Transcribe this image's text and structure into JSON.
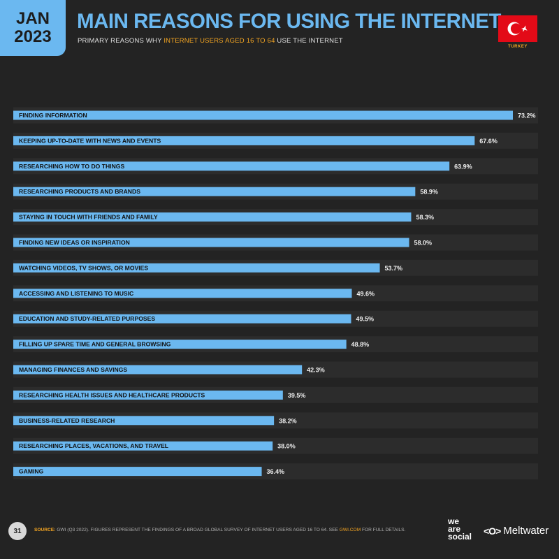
{
  "header": {
    "month": "JAN",
    "year": "2023",
    "title": "MAIN REASONS FOR USING THE INTERNET",
    "subtitle_pre": "PRIMARY REASONS WHY ",
    "subtitle_highlight": "INTERNET USERS AGED 16 TO 64",
    "subtitle_post": " USE THE INTERNET",
    "country": "TURKEY"
  },
  "chart_data": {
    "type": "bar",
    "orientation": "horizontal",
    "categories": [
      "FINDING INFORMATION",
      "KEEPING UP-TO-DATE WITH NEWS AND EVENTS",
      "RESEARCHING HOW TO DO THINGS",
      "RESEARCHING PRODUCTS AND BRANDS",
      "STAYING IN TOUCH WITH FRIENDS AND FAMILY",
      "FINDING NEW IDEAS OR INSPIRATION",
      "WATCHING VIDEOS, TV SHOWS, OR MOVIES",
      "ACCESSING AND LISTENING TO MUSIC",
      "EDUCATION AND STUDY-RELATED PURPOSES",
      "FILLING UP SPARE TIME AND GENERAL BROWSING",
      "MANAGING FINANCES AND SAVINGS",
      "RESEARCHING HEALTH ISSUES AND HEALTHCARE PRODUCTS",
      "BUSINESS-RELATED RESEARCH",
      "RESEARCHING PLACES, VACATIONS, AND TRAVEL",
      "GAMING"
    ],
    "values": [
      73.2,
      67.6,
      63.9,
      58.9,
      58.3,
      58.0,
      53.7,
      49.6,
      49.5,
      48.8,
      42.3,
      39.5,
      38.2,
      38.0,
      36.4
    ],
    "value_labels": [
      "73.2%",
      "67.6%",
      "63.9%",
      "58.9%",
      "58.3%",
      "58.0%",
      "53.7%",
      "49.6%",
      "49.5%",
      "48.8%",
      "42.3%",
      "39.5%",
      "38.2%",
      "38.0%",
      "36.4%"
    ],
    "bar_color": "#6bb8f0",
    "xlim": [
      0,
      73.2
    ]
  },
  "footer": {
    "page_number": "31",
    "source_key": "SOURCE:",
    "source_text": " GWI (Q3 2022). FIGURES REPRESENT THE FINDINGS OF A BROAD GLOBAL SURVEY OF INTERNET USERS AGED 16 TO 64. SEE ",
    "source_link": "GWI.COM",
    "source_tail": " FOR FULL DETAILS.",
    "logo_was_1": "we",
    "logo_was_2": "are",
    "logo_was_3": "social",
    "logo_mw_mark": "<O>",
    "logo_mw_name": "Meltwater"
  },
  "colors": {
    "background": "#232323",
    "accent": "#6bb8f0",
    "highlight": "#f5a623",
    "flag_red": "#e30a17"
  }
}
